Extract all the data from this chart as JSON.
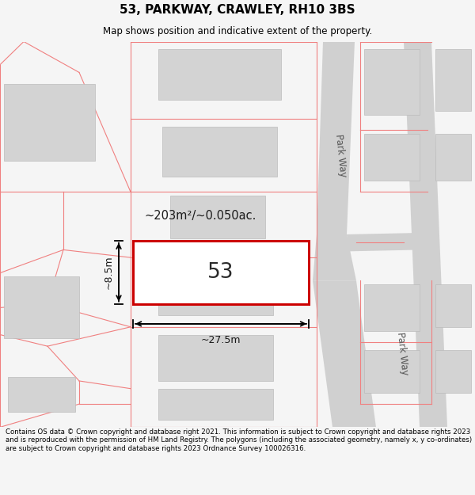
{
  "title": "53, PARKWAY, CRAWLEY, RH10 3BS",
  "subtitle": "Map shows position and indicative extent of the property.",
  "footer": "Contains OS data © Crown copyright and database right 2021. This information is subject to Crown copyright and database rights 2023 and is reproduced with the permission of HM Land Registry. The polygons (including the associated geometry, namely x, y co-ordinates) are subject to Crown copyright and database rights 2023 Ordnance Survey 100026316.",
  "bg_color": "#f5f5f5",
  "map_bg": "#f0eeee",
  "road_color": "#d0d0d0",
  "plot_outline_color": "#cc0000",
  "building_fill_color": "#d3d3d3",
  "building_outline_color": "#bbbbbb",
  "parcel_line_color": "#f08080",
  "area_text": "~203m²/~0.050ac.",
  "number_text": "53",
  "dim_width": "~27.5m",
  "dim_height": "~8.5m",
  "road_label_top": "Park Way",
  "road_label_bottom": "Park Way"
}
